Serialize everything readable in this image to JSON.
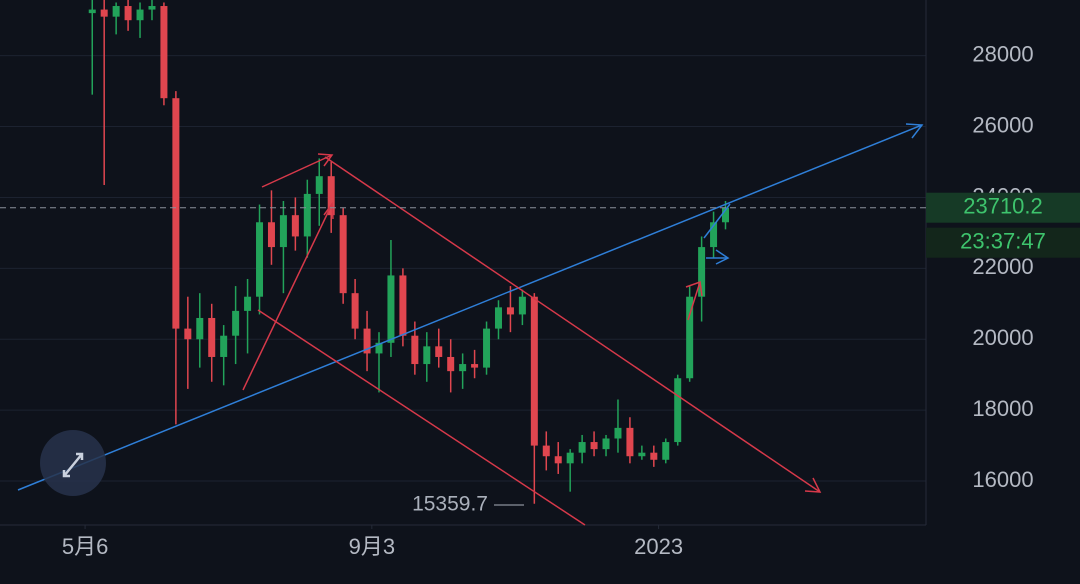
{
  "chart_data": {
    "type": "candlestick",
    "x": [
      3,
      8,
      13,
      18,
      23,
      28,
      33,
      38,
      43,
      48,
      53,
      58,
      63,
      68,
      73,
      78,
      83,
      88,
      93,
      98,
      103,
      108,
      113,
      118,
      123,
      128,
      133,
      138,
      143,
      148,
      153,
      158,
      163,
      168,
      173,
      178,
      183,
      188,
      193,
      198,
      203,
      208,
      213,
      218,
      223,
      228,
      233,
      238,
      243,
      248,
      253,
      258,
      263,
      268
    ],
    "open": [
      29200,
      29300,
      29100,
      29400,
      29000,
      29300,
      29400,
      26800,
      20300,
      20000,
      20600,
      19500,
      20100,
      20800,
      21200,
      23300,
      22600,
      23500,
      22900,
      24100,
      24600,
      23500,
      21300,
      20300,
      19600,
      19900,
      21800,
      20100,
      19300,
      19800,
      19500,
      19100,
      19300,
      19200,
      20300,
      20900,
      20700,
      21200,
      17000,
      16700,
      16500,
      16800,
      17100,
      16900,
      17200,
      17500,
      16700,
      16800,
      16600,
      17100,
      18900,
      21200,
      22600,
      23300
    ],
    "high": [
      29600,
      29600,
      29500,
      29600,
      29500,
      29600,
      29500,
      27000,
      21200,
      21300,
      21000,
      20400,
      21500,
      21700,
      23800,
      24200,
      23900,
      24000,
      24500,
      25100,
      25000,
      23700,
      21700,
      20800,
      20200,
      22800,
      22000,
      20500,
      20200,
      20300,
      20000,
      19600,
      19700,
      20500,
      21100,
      21500,
      21400,
      21300,
      17400,
      17100,
      16900,
      17300,
      17400,
      17300,
      18300,
      17800,
      17000,
      17000,
      17200,
      19000,
      21500,
      22900,
      23600,
      23900
    ],
    "low": [
      26900,
      24350,
      28600,
      28700,
      28500,
      29000,
      26600,
      17600,
      18600,
      19200,
      18800,
      18700,
      19300,
      19600,
      20700,
      22100,
      21300,
      22500,
      22300,
      23200,
      23000,
      21000,
      20000,
      19100,
      18500,
      19500,
      19800,
      19000,
      18800,
      19200,
      18500,
      18600,
      18900,
      19000,
      20000,
      20200,
      20400,
      15359.7,
      16300,
      16200,
      15700,
      16500,
      16700,
      16700,
      16800,
      16500,
      16600,
      16400,
      16500,
      17000,
      18800,
      20500,
      22300,
      23100
    ],
    "close": [
      29300,
      29100,
      29400,
      29000,
      29300,
      29400,
      26800,
      20300,
      20000,
      20600,
      19500,
      20100,
      20800,
      21200,
      23300,
      22600,
      23500,
      22900,
      24100,
      24600,
      23500,
      21300,
      20300,
      19600,
      19900,
      21800,
      20100,
      19300,
      19800,
      19500,
      19100,
      19300,
      19200,
      20300,
      20900,
      20700,
      21200,
      17000,
      16700,
      16500,
      16800,
      17100,
      16900,
      17200,
      17500,
      16700,
      16800,
      16600,
      17100,
      18900,
      21200,
      22600,
      23300,
      23710.2
    ],
    "up_color": "#22a35a",
    "down_color": "#e0464f",
    "xlim": [
      -35.6,
      351.9
    ],
    "xticks": [
      {
        "value": 0,
        "label": "5月6"
      },
      {
        "value": 120,
        "label": "9月3"
      },
      {
        "value": 240,
        "label": "2023"
      }
    ],
    "ylim": [
      14760,
      29570
    ],
    "yticks": [
      16000,
      18000,
      20000,
      22000,
      24000,
      26000,
      28000
    ],
    "grid": true,
    "last_price": 23710.2,
    "countdown": "23:37:47"
  }
}
